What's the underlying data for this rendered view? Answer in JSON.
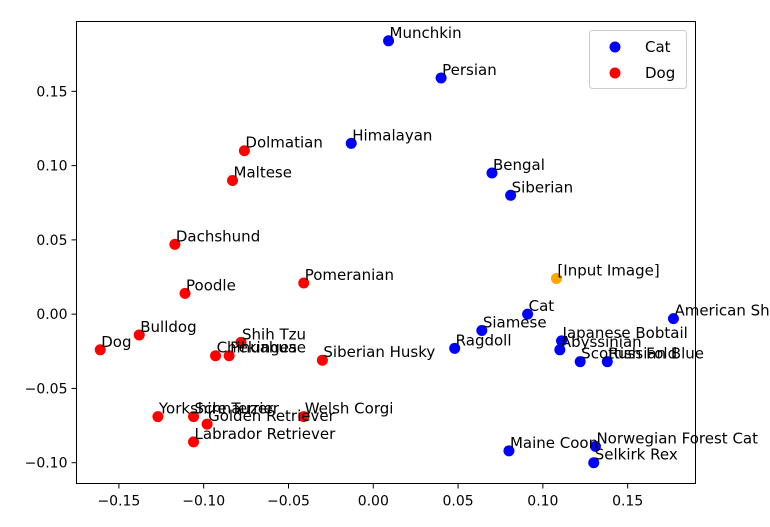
{
  "chart_data": {
    "type": "scatter",
    "title": "",
    "xlabel": "",
    "ylabel": "",
    "xlim": [
      -0.175,
      0.19
    ],
    "ylim": [
      -0.114,
      0.197
    ],
    "xticks": [
      -0.15,
      -0.1,
      -0.05,
      0.0,
      0.05,
      0.1,
      0.15
    ],
    "xtick_labels": [
      "−0.15",
      "−0.10",
      "−0.05",
      "0.00",
      "0.05",
      "0.10",
      "0.15"
    ],
    "yticks": [
      -0.1,
      -0.05,
      0.0,
      0.05,
      0.1,
      0.15
    ],
    "ytick_labels": [
      "−0.10",
      "−0.05",
      "0.00",
      "0.05",
      "0.10",
      "0.15"
    ],
    "legend": {
      "position": "top-right",
      "entries": [
        {
          "label": "Cat",
          "color": "#0000ff"
        },
        {
          "label": "Dog",
          "color": "#ff0000"
        }
      ]
    },
    "series": [
      {
        "name": "Cat",
        "color": "#0000ff",
        "points": [
          {
            "label": "Munchkin",
            "x": 0.009,
            "y": 0.184
          },
          {
            "label": "Persian",
            "x": 0.04,
            "y": 0.159
          },
          {
            "label": "Himalayan",
            "x": -0.013,
            "y": 0.115
          },
          {
            "label": "Bengal",
            "x": 0.07,
            "y": 0.095
          },
          {
            "label": "Siberian",
            "x": 0.081,
            "y": 0.08
          },
          {
            "label": "Cat",
            "x": 0.091,
            "y": 0.0
          },
          {
            "label": "Siamese",
            "x": 0.064,
            "y": -0.011
          },
          {
            "label": "Ragdoll",
            "x": 0.048,
            "y": -0.023
          },
          {
            "label": "Japanese Bobtail",
            "x": 0.111,
            "y": -0.018
          },
          {
            "label": "Abyssinian",
            "x": 0.11,
            "y": -0.024
          },
          {
            "label": "Scottish Fold",
            "x": 0.122,
            "y": -0.032
          },
          {
            "label": "Russian Blue",
            "x": 0.138,
            "y": -0.032
          },
          {
            "label": "American Shorthair",
            "x": 0.177,
            "y": -0.003
          },
          {
            "label": "Maine Coon",
            "x": 0.08,
            "y": -0.092
          },
          {
            "label": "Norwegian Forest Cat",
            "x": 0.131,
            "y": -0.089
          },
          {
            "label": "Selkirk Rex",
            "x": 0.13,
            "y": -0.1
          }
        ]
      },
      {
        "name": "Dog",
        "color": "#ff0000",
        "points": [
          {
            "label": "Dolmatian",
            "x": -0.076,
            "y": 0.11
          },
          {
            "label": "Maltese",
            "x": -0.083,
            "y": 0.09
          },
          {
            "label": "Dachshund",
            "x": -0.117,
            "y": 0.047
          },
          {
            "label": "Poodle",
            "x": -0.111,
            "y": 0.014
          },
          {
            "label": "Pomeranian",
            "x": -0.041,
            "y": 0.021
          },
          {
            "label": "Bulldog",
            "x": -0.138,
            "y": -0.014
          },
          {
            "label": "Dog",
            "x": -0.161,
            "y": -0.024
          },
          {
            "label": "Shih Tzu",
            "x": -0.078,
            "y": -0.019
          },
          {
            "label": "Chihuahua",
            "x": -0.093,
            "y": -0.028
          },
          {
            "label": "Pekingese",
            "x": -0.085,
            "y": -0.028
          },
          {
            "label": "Siberian Husky",
            "x": -0.03,
            "y": -0.031
          },
          {
            "label": "Yorkshire Terrier",
            "x": -0.127,
            "y": -0.069
          },
          {
            "label": "Schnauzer",
            "x": -0.106,
            "y": -0.069
          },
          {
            "label": "Welsh Corgi",
            "x": -0.041,
            "y": -0.069
          },
          {
            "label": "Golden Retriever",
            "x": -0.098,
            "y": -0.074
          },
          {
            "label": "Labrador Retriever",
            "x": -0.106,
            "y": -0.086
          }
        ]
      },
      {
        "name": "Input",
        "color": "#ffa500",
        "points": [
          {
            "label": "[Input Image]",
            "x": 0.108,
            "y": 0.024
          }
        ]
      }
    ]
  }
}
